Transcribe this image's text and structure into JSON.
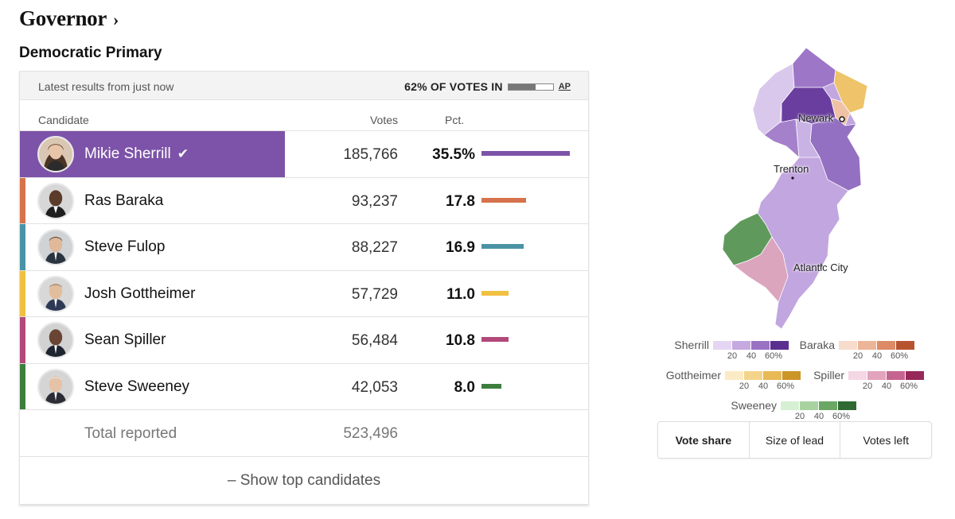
{
  "page": {
    "title": "Governor",
    "title_chevron": "›",
    "subtitle": "Democratic Primary"
  },
  "status": {
    "latest": "Latest results from just now",
    "votes_in": "62% OF VOTES IN",
    "votes_in_fraction": 0.62,
    "source": "AP"
  },
  "table": {
    "headers": {
      "candidate": "Candidate",
      "votes": "Votes",
      "pct": "Pct."
    },
    "candidates": [
      {
        "name": "Mikie Sherrill",
        "votes": "185,766",
        "pct": "35.5%",
        "pct_value": 35.5,
        "color": "#7c53a8",
        "winner": true,
        "check": "✔"
      },
      {
        "name": "Ras Baraka",
        "votes": "93,237",
        "pct": "17.8",
        "pct_value": 17.8,
        "color": "#d6734c",
        "winner": false
      },
      {
        "name": "Steve Fulop",
        "votes": "88,227",
        "pct": "16.9",
        "pct_value": 16.9,
        "color": "#4a93a5",
        "winner": false
      },
      {
        "name": "Josh Gottheimer",
        "votes": "57,729",
        "pct": "11.0",
        "pct_value": 11.0,
        "color": "#f0c040",
        "winner": false
      },
      {
        "name": "Sean Spiller",
        "votes": "56,484",
        "pct": "10.8",
        "pct_value": 10.8,
        "color": "#b2497a",
        "winner": false
      },
      {
        "name": "Steve Sweeney",
        "votes": "42,053",
        "pct": "8.0",
        "pct_value": 8.0,
        "color": "#3d7e3f",
        "winner": false
      }
    ],
    "total_label": "Total reported",
    "total_votes": "523,496",
    "show_top": "– Show top candidates"
  },
  "map": {
    "cities": {
      "newark": "Newark",
      "trenton": "Trenton",
      "atlantic_city": "Atlantic City"
    }
  },
  "legend": [
    {
      "name": "Sherrill",
      "colors": [
        "#e4d6f3",
        "#c5a9e0",
        "#9a72c4",
        "#5b2f8f"
      ],
      "ticks": [
        "20",
        "40",
        "60%"
      ]
    },
    {
      "name": "Baraka",
      "colors": [
        "#f7dccc",
        "#edb597",
        "#dd8a66",
        "#b85330"
      ],
      "ticks": [
        "20",
        "40",
        "60%"
      ]
    },
    {
      "name": "Gottheimer",
      "colors": [
        "#fbebc4",
        "#f4d48a",
        "#e8b955",
        "#cc9527"
      ],
      "ticks": [
        "20",
        "40",
        "60%"
      ]
    },
    {
      "name": "Spiller",
      "colors": [
        "#f5d6e3",
        "#e2a3bd",
        "#c5648e",
        "#96285a"
      ],
      "ticks": [
        "20",
        "40",
        "60%"
      ]
    },
    {
      "name": "Sweeney",
      "colors": [
        "#d6f0d3",
        "#a8d3a1",
        "#6aa764",
        "#2f6a32"
      ],
      "ticks": [
        "20",
        "40",
        "60%"
      ]
    }
  ],
  "toggle": {
    "options": [
      "Vote share",
      "Size of lead",
      "Votes left"
    ],
    "active": 0
  }
}
